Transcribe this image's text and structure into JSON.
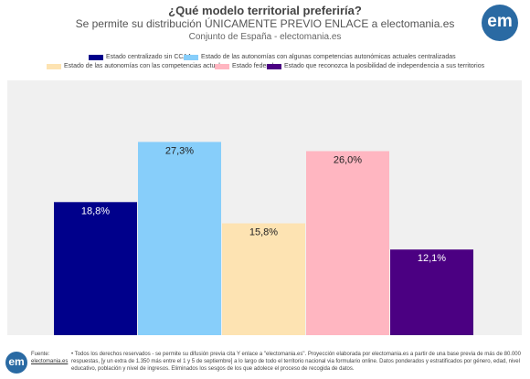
{
  "header": {
    "title": "¿Qué modelo territorial preferiría?",
    "subtitle": "Se permite su distribución ÚNICAMENTE PREVIO ENLACE a electomania.es",
    "scope": "Conjunto de España - electomania.es"
  },
  "logo": {
    "text": "em",
    "color": "#2a6aa3"
  },
  "footer": {
    "source_label": "Fuente:",
    "source_link": "electomania.es",
    "note": "• Todos los derechos reservados - se permite su difusión previa cita Y enlace a \"electomania.es\". Proyección elaborada por electomania.es a partir de una base previa de más de 80.000 respuestas, [y un extra de 1.350 más entre el 1 y 5 de septiembre] a lo largo de todo el territorio nacional via formulario online. Datos ponderados y estratificados por género, edad, nivel educativo, población y nivel de ingresos. Eliminados los sesgos de los que adolece el proceso de recogida de datos."
  },
  "chart_data": {
    "type": "bar",
    "title": "¿Qué modelo territorial preferiría?",
    "categories": [
      "Estado centralizado sin CCAA",
      "Estado de las autonomías con algunas competencias autonómicas actuales centralizadas",
      "Estado de las autonomías con las competencias actuales",
      "Estado federal",
      "Estado que reconozca la posibilidad de independencia a sus territorios"
    ],
    "values": [
      18.8,
      27.3,
      15.8,
      26.0,
      12.1
    ],
    "labels": [
      "18,8%",
      "27,3%",
      "15,8%",
      "26,0%",
      "12,1%"
    ],
    "colors": [
      "#00008b",
      "#87cefa",
      "#fde3b2",
      "#ffb6c1",
      "#4b0082"
    ],
    "label_colors": [
      "#ffffff",
      "#222222",
      "#222222",
      "#222222",
      "#ffffff"
    ],
    "ylim": [
      0,
      36
    ],
    "legend_position": "top",
    "grid": false
  }
}
